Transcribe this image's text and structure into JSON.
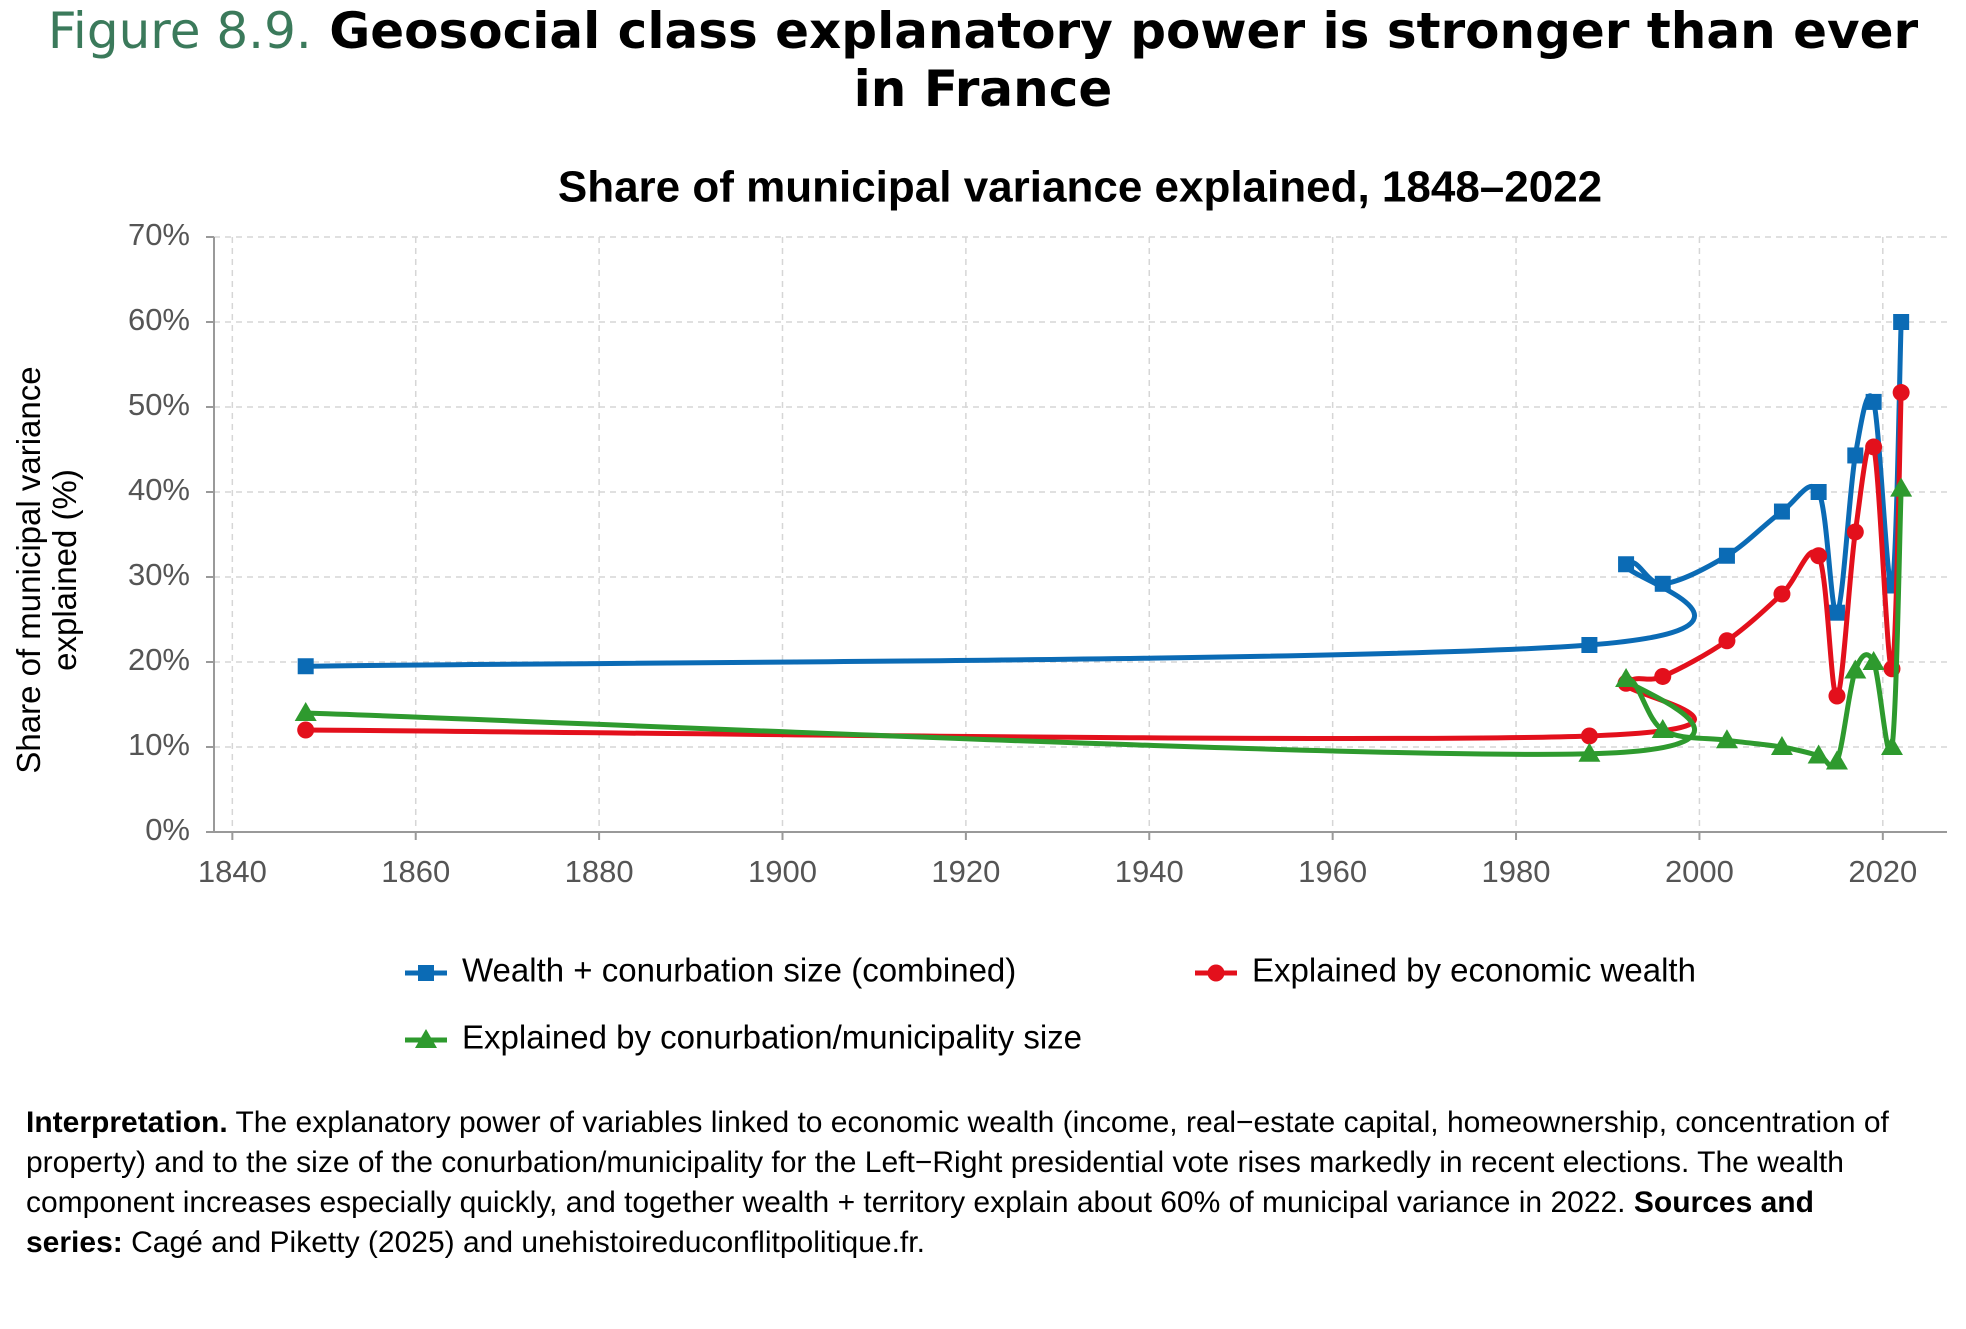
{
  "chart_data": {
    "type": "line",
    "title_prefix": "Figure 8.9.",
    "title": "Geosocial class explanatory power is stronger than ever in France",
    "subtitle": "Share of municipal variance explained, 1848–2022",
    "y_label": "Share of municipal variance explained (%)",
    "xlim": [
      1838,
      2027
    ],
    "xticks": [
      1840,
      1860,
      1880,
      1900,
      1920,
      1940,
      1960,
      1980,
      2000,
      2020
    ],
    "ylim": [
      0,
      70
    ],
    "yticks": [
      {
        "value": 0,
        "label": "0%"
      },
      {
        "value": 10,
        "label": "10%"
      },
      {
        "value": 20,
        "label": "20%"
      },
      {
        "value": 30,
        "label": "30%"
      },
      {
        "value": 40,
        "label": "40%"
      },
      {
        "value": 50,
        "label": "50%"
      },
      {
        "value": 60,
        "label": "60%"
      },
      {
        "value": 70,
        "label": "70%"
      }
    ],
    "grid": true,
    "x": [
      1848,
      1988,
      1992,
      1996,
      2003,
      2009,
      2013,
      2015,
      2017,
      2019,
      2021,
      2022
    ],
    "series": [
      {
        "name": "Wealth + conurbation size (combined)",
        "color": "#0b6bb5",
        "marker": "square",
        "values": [
          19.5,
          22,
          31.5,
          29.2,
          32.5,
          37.7,
          40,
          25.8,
          44.3,
          50.6,
          29,
          60
        ]
      },
      {
        "name": "Explained by economic wealth",
        "color": "#e3101c",
        "marker": "circle",
        "values": [
          12,
          11.3,
          17.5,
          18.3,
          22.5,
          28,
          32.5,
          16,
          35.3,
          45.3,
          19.2,
          51.7
        ]
      },
      {
        "name": "Explained by conurbation/municipality size",
        "color": "#2e9a2e",
        "marker": "triangle",
        "values": [
          14,
          9.2,
          18,
          12,
          10.8,
          10,
          9,
          8.3,
          19,
          20,
          10,
          40.4
        ]
      }
    ]
  },
  "notes": {
    "label1": "Interpretation.",
    "text1": "The explanatory power of variables linked to economic wealth (income, real−estate capital, homeownership, concentration of property) and to the size of the conurbation/municipality for the Left−Right presidential vote rises markedly in recent elections. The wealth component increases especially quickly, and together wealth + territory explain about 60% of municipal variance in 2022.",
    "label2": "Sources and series:",
    "text2": "Cagé and Piketty (2025) and unehistoireduconflitpolitique.fr."
  }
}
